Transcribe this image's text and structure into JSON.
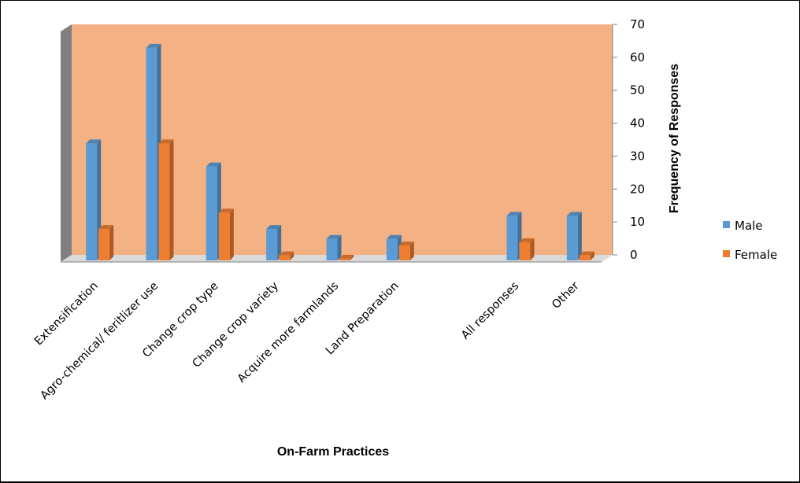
{
  "chart_data": {
    "type": "bar",
    "xlabel": "On-Farm Practices",
    "ylabel": "Frequency of Responses",
    "ylim": [
      0,
      70
    ],
    "yticks": [
      0,
      10,
      20,
      30,
      40,
      50,
      60,
      70
    ],
    "categories": [
      "Extensification",
      "Agro-chemical/ feritlizer use",
      "Change crop type",
      "Change crop variety",
      "Acquire more farmlands",
      "Land Preparation",
      "",
      "All responses",
      "Other"
    ],
    "series": [
      {
        "name": "Male",
        "values": [
          36,
          65,
          29,
          10,
          7,
          7,
          null,
          14,
          14
        ]
      },
      {
        "name": "Female",
        "values": [
          10,
          36,
          15,
          2,
          1,
          5,
          null,
          6,
          2
        ]
      }
    ],
    "legend_position": "right",
    "grid": false,
    "colors": {
      "plot_background": "#F4B183",
      "wall_side": "#7F7F7F",
      "male": "#5B9BD5",
      "female": "#ED7D31"
    }
  }
}
